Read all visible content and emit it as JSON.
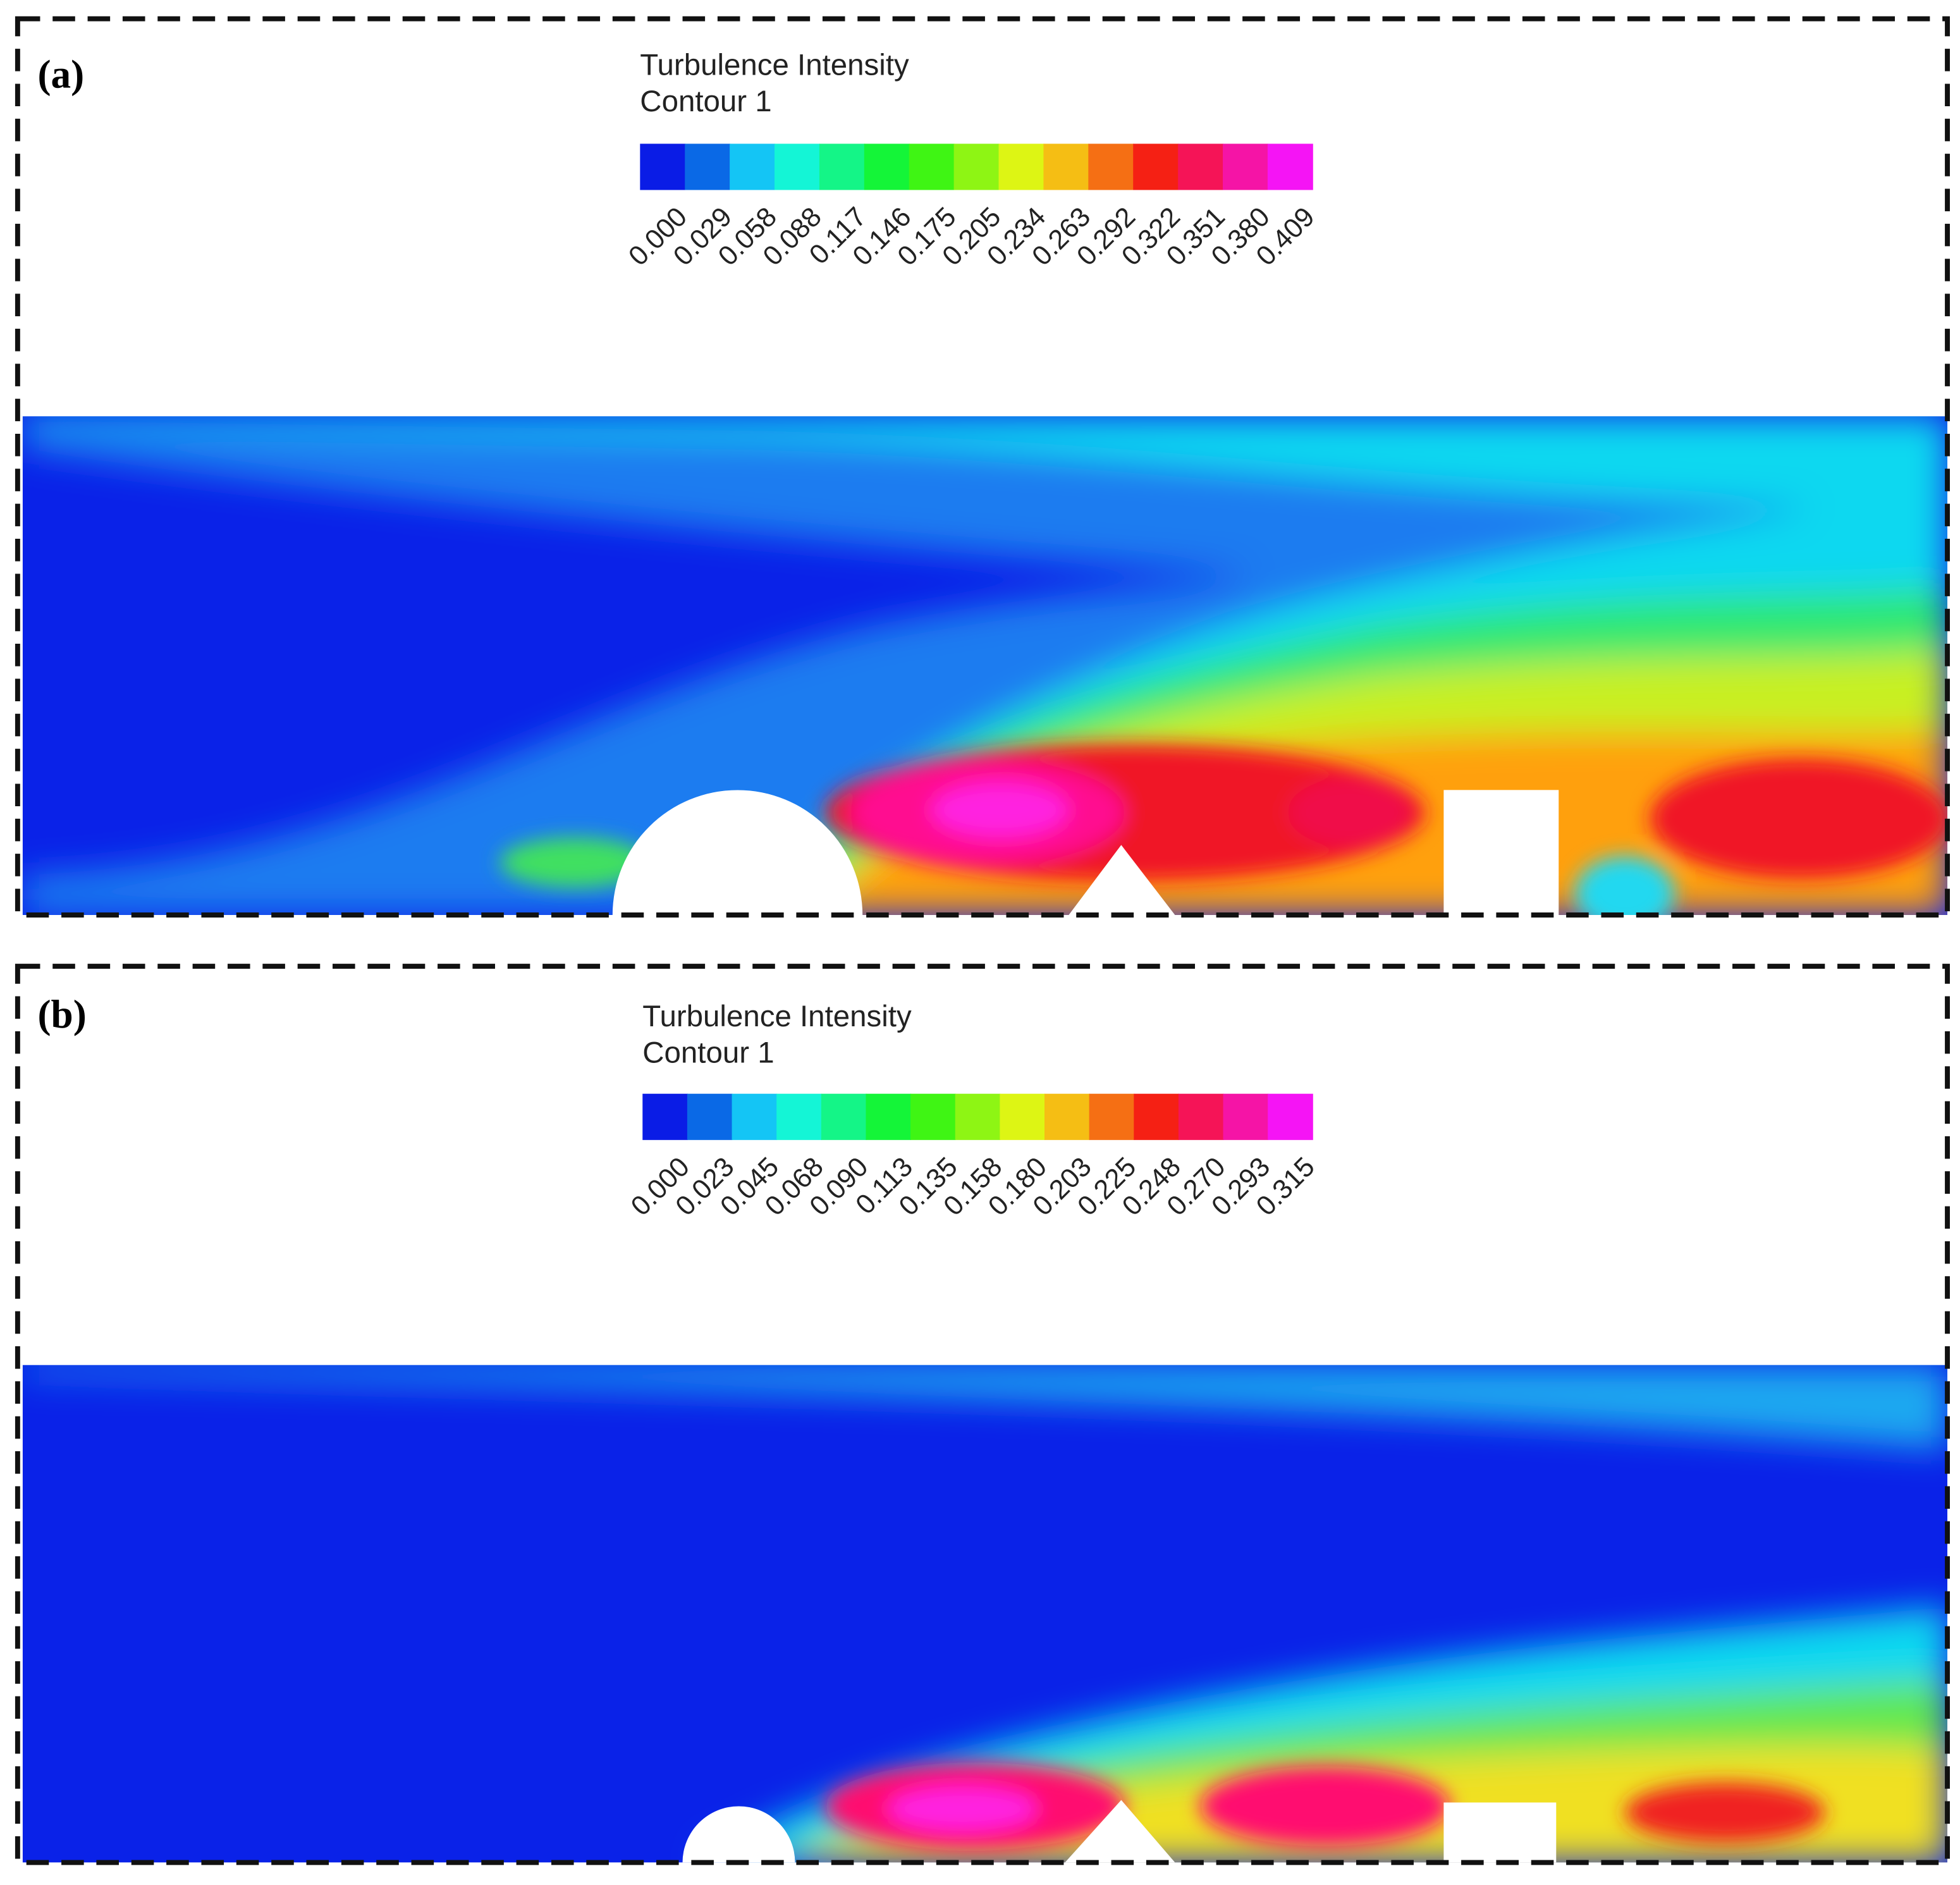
{
  "panels": [
    {
      "label": "(a)",
      "legend": {
        "title": "Turbulence Intensity",
        "subtitle": "Contour 1",
        "ticks": [
          "0.000",
          "0.029",
          "0.058",
          "0.088",
          "0.117",
          "0.146",
          "0.175",
          "0.205",
          "0.234",
          "0.263",
          "0.292",
          "0.322",
          "0.351",
          "0.380",
          "0.409"
        ]
      }
    },
    {
      "label": "(b)",
      "legend": {
        "title": "Turbulence Intensity",
        "subtitle": "Contour 1",
        "ticks": [
          "0.000",
          "0.023",
          "0.045",
          "0.068",
          "0.090",
          "0.113",
          "0.135",
          "0.158",
          "0.180",
          "0.203",
          "0.225",
          "0.248",
          "0.270",
          "0.293",
          "0.315"
        ]
      }
    }
  ]
}
